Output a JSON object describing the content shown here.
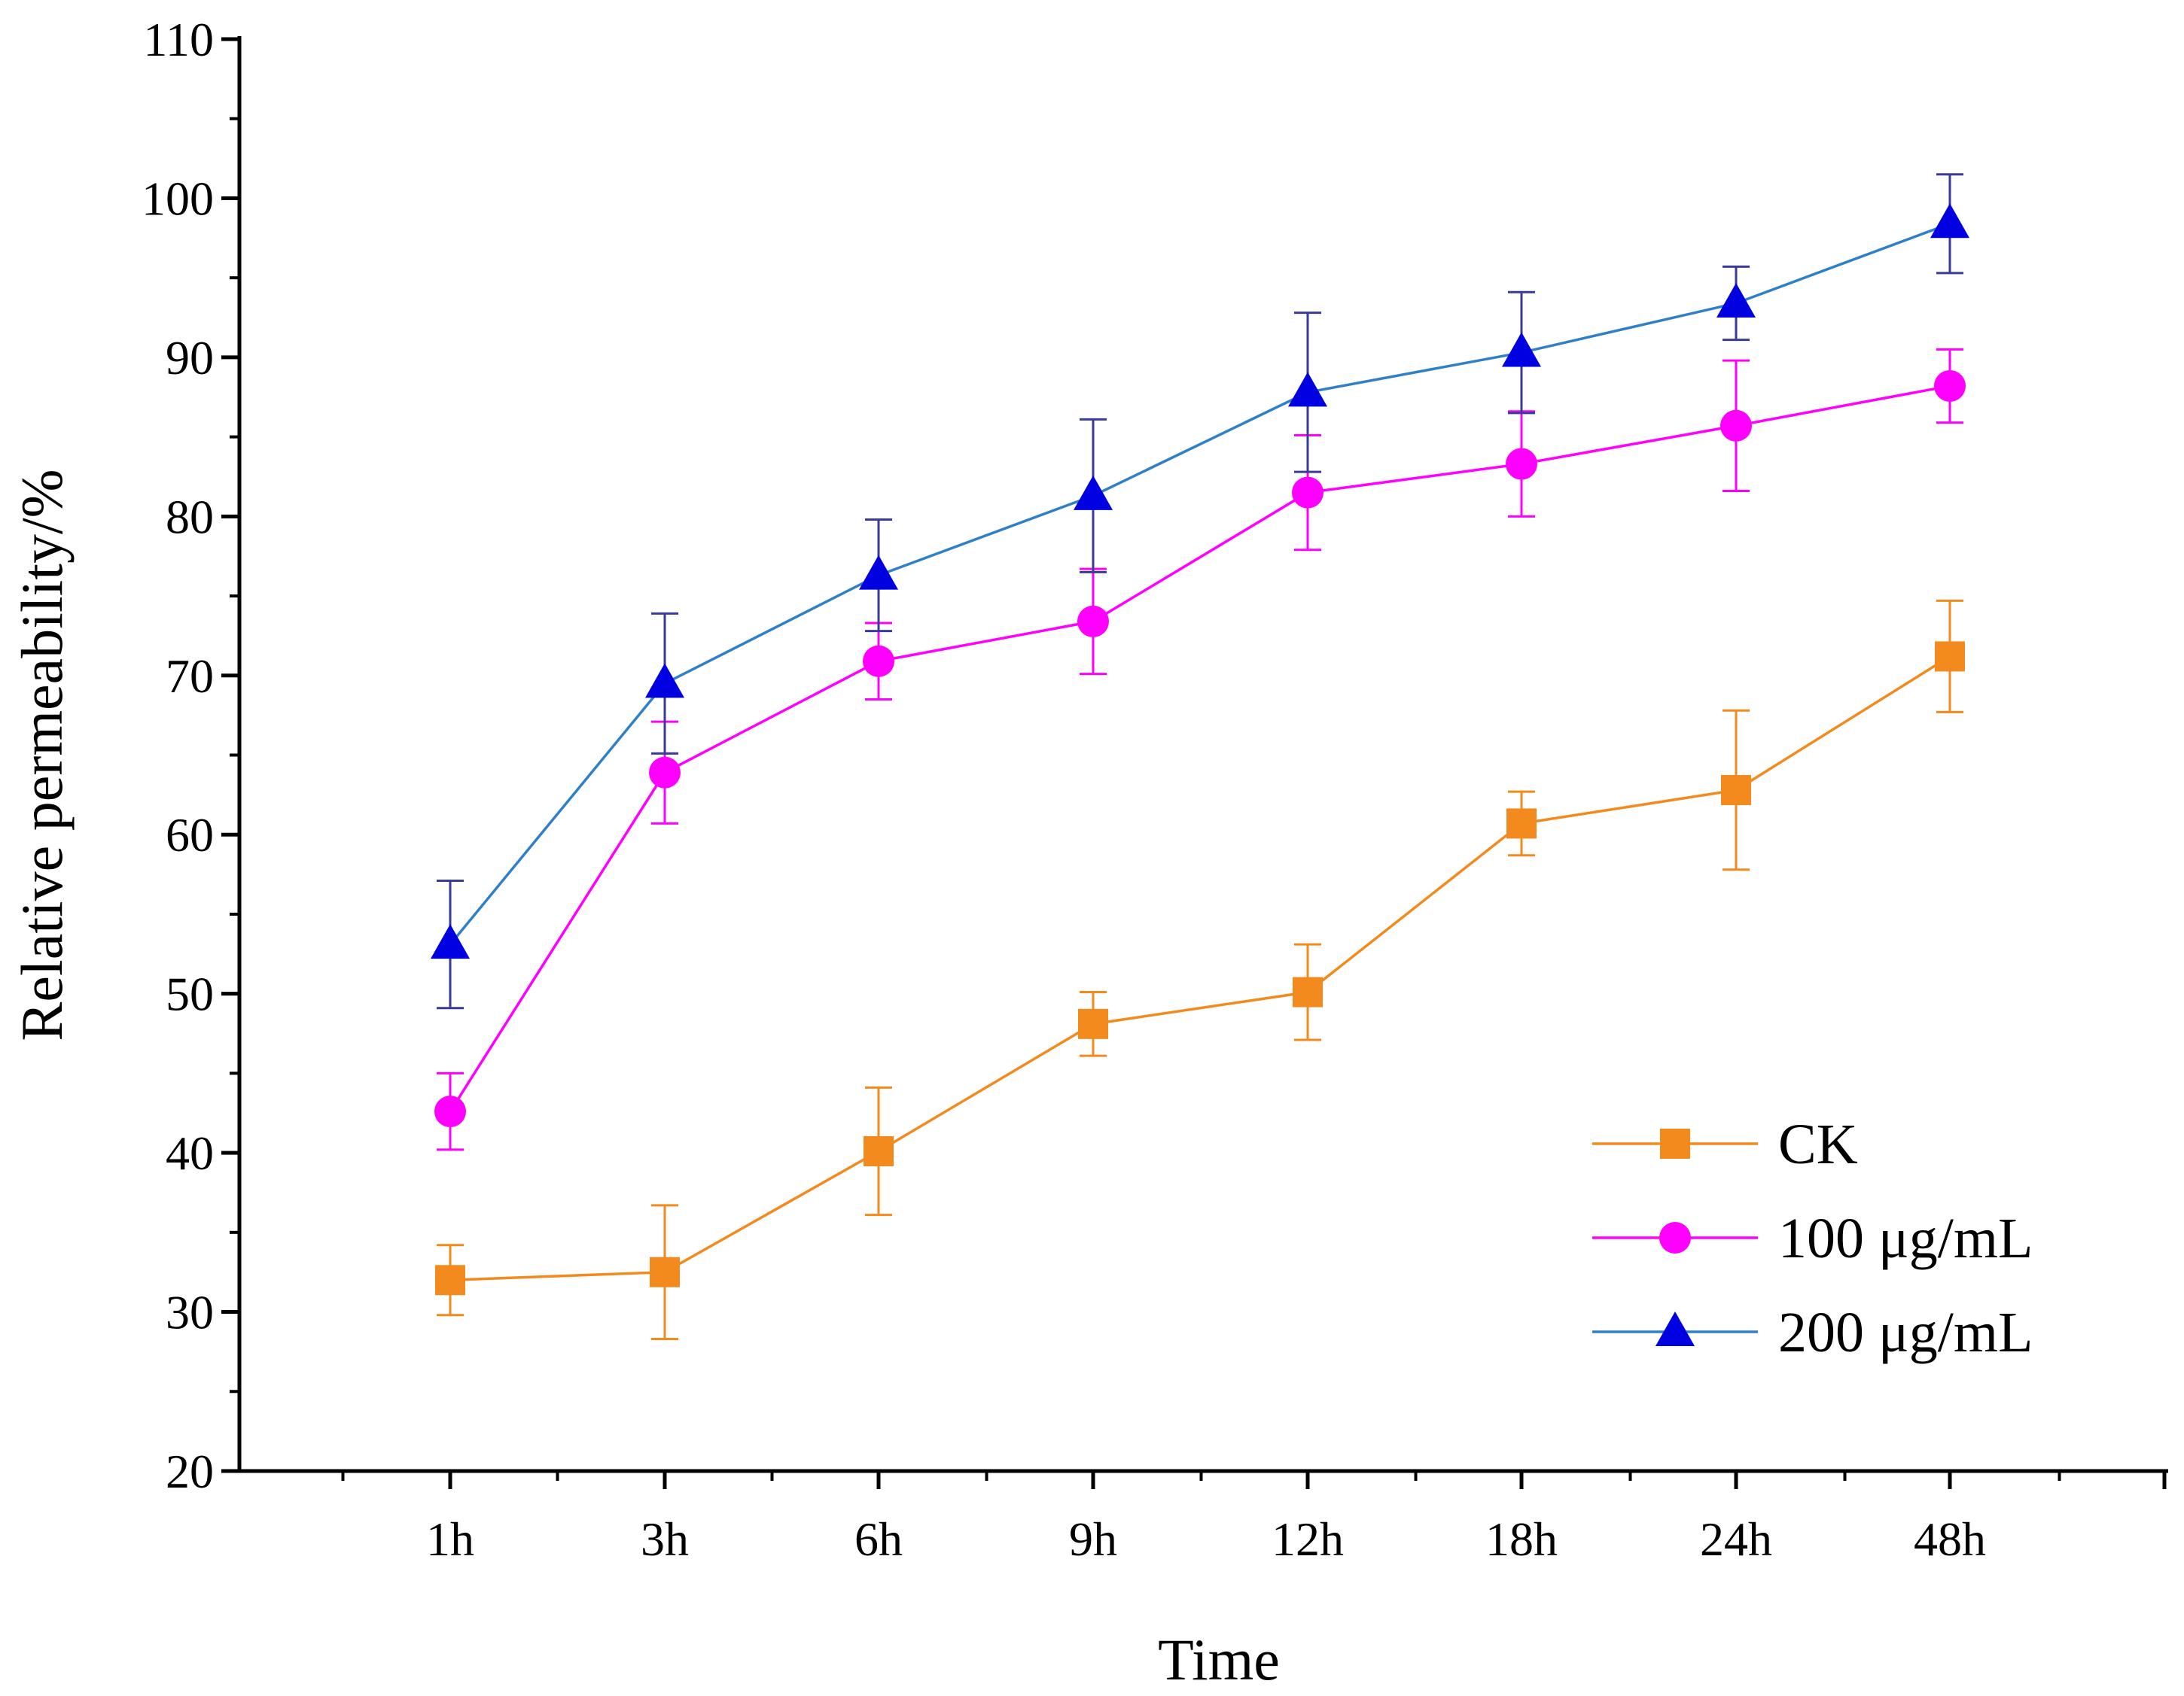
{
  "chart_data": {
    "type": "line",
    "title": "",
    "xlabel": "Time",
    "ylabel": "Relative permeability/%",
    "categories": [
      "1h",
      "3h",
      "6h",
      "9h",
      "12h",
      "18h",
      "24h",
      "48h"
    ],
    "ylim": [
      20,
      110
    ],
    "yticks": [
      "20",
      "30",
      "40",
      "50",
      "60",
      "70",
      "80",
      "90",
      "100",
      "110"
    ],
    "grid": false,
    "legend_position": "bottom-right",
    "series": [
      {
        "name": "CK",
        "marker": "square",
        "color": "#F28A1E",
        "values": [
          32.0,
          32.5,
          40.1,
          48.1,
          50.1,
          60.7,
          62.8,
          71.2
        ],
        "errors": [
          2.2,
          4.2,
          4.0,
          2.0,
          3.0,
          2.0,
          5.0,
          3.5
        ]
      },
      {
        "name": "100 μg/mL",
        "marker": "circle",
        "color": "#FF00FF",
        "values": [
          42.6,
          63.9,
          70.9,
          73.4,
          81.5,
          83.3,
          85.7,
          88.2
        ],
        "errors": [
          2.4,
          3.2,
          2.4,
          3.3,
          3.6,
          3.3,
          4.1,
          2.3
        ]
      },
      {
        "name": "200 μg/mL",
        "marker": "triangle",
        "color": "#0000E0",
        "line_color": "#2F80C8",
        "error_color": "#3A3A9C",
        "values": [
          53.1,
          69.5,
          76.3,
          81.3,
          87.8,
          90.3,
          93.4,
          98.4
        ],
        "errors": [
          4.0,
          4.4,
          3.5,
          4.8,
          5.0,
          3.8,
          2.3,
          3.1
        ]
      }
    ]
  }
}
